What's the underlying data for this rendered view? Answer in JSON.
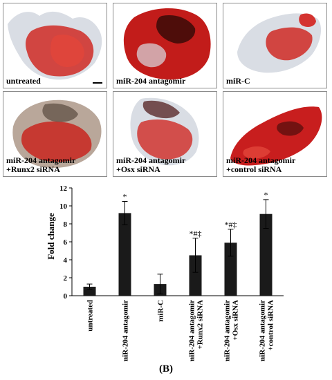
{
  "panels": [
    {
      "label": "untreated"
    },
    {
      "label": "miR-204 antagomir"
    },
    {
      "label": "miR-C"
    },
    {
      "label": "miR-204 antagomir\n+Runx2 siRNA"
    },
    {
      "label": "miR-204 antagomir\n+Osx siRNA"
    },
    {
      "label": "miR-204 antagomir\n+control siRNA"
    }
  ],
  "panel_b_label": "(B)",
  "colors": {
    "stain": "#c81e1e",
    "dark_stain": "#3a0a08",
    "bar": "#1a1a1a"
  },
  "chart_data": {
    "type": "bar",
    "ylabel": "Fold change",
    "ylim": [
      0,
      12
    ],
    "yticks": [
      "0",
      "2",
      "4",
      "6",
      "8",
      "10",
      "12"
    ],
    "categories": [
      "untreated",
      "miR-204 antagomir",
      "miR-C",
      "miR-204 antagomir\n+Runx2 siRNA",
      "miR-204 antagomir\n+Osx siRNA",
      "miR-204 antagomir\n+control siRNA"
    ],
    "values": [
      1.0,
      9.2,
      1.3,
      4.5,
      5.9,
      9.1
    ],
    "errors": [
      0.3,
      1.3,
      1.1,
      1.9,
      1.5,
      1.6
    ],
    "annotations": [
      "",
      "*",
      "",
      "*#‡",
      "*#‡",
      "*"
    ]
  }
}
